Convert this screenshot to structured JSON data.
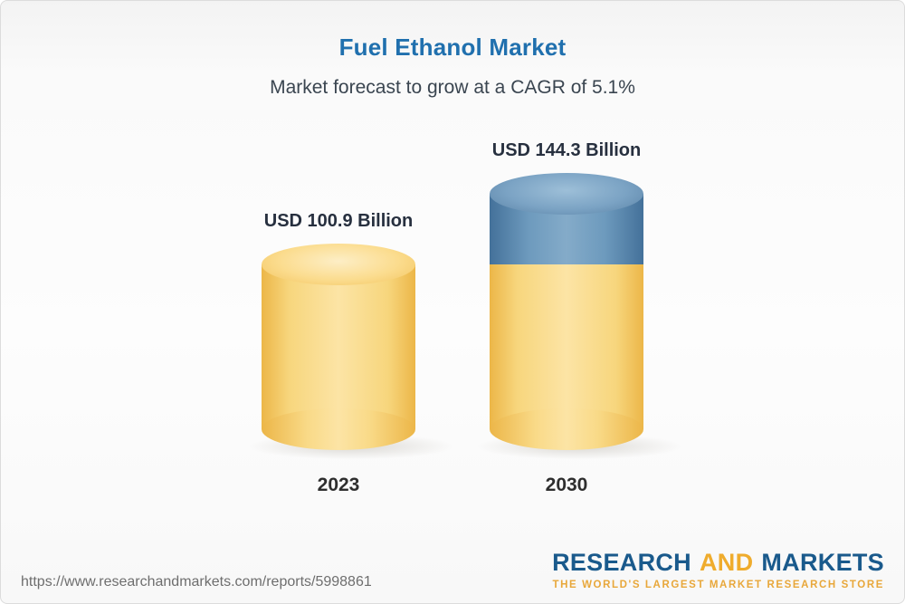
{
  "chart_data": {
    "type": "bar",
    "subtype": "3d-cylinder",
    "title": "Fuel Ethanol Market",
    "subtitle": "Market forecast to grow at a CAGR of 5.1%",
    "unit": "USD Billion",
    "cagr_percent": 5.1,
    "categories": [
      "2023",
      "2030"
    ],
    "values": [
      100.9,
      144.3
    ],
    "value_labels": [
      "USD 100.9 Billion",
      "USD 144.3 Billion"
    ],
    "segments": [
      [
        {
          "color": "gold",
          "value": 100.9
        }
      ],
      [
        {
          "color": "blue",
          "value": 43.4
        },
        {
          "color": "gold",
          "value": 100.9
        }
      ]
    ],
    "colors": {
      "gold": "#f5c85f",
      "blue": "#5784aa",
      "title_blue": "#2070ae"
    },
    "legend": false,
    "axes": "none",
    "grid": false
  },
  "footer": {
    "url": "https://www.researchandmarkets.com/reports/5998861",
    "logo": {
      "research": "RESEARCH",
      "and": "AND",
      "markets": "MARKETS",
      "tagline": "THE WORLD'S LARGEST MARKET RESEARCH STORE"
    }
  }
}
